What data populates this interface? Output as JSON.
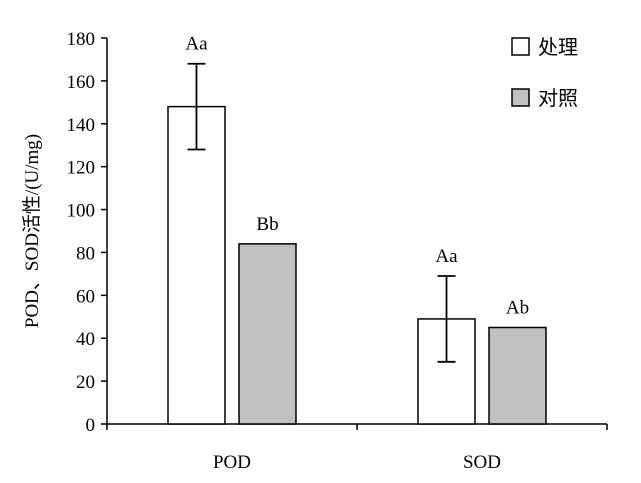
{
  "chart_data": {
    "type": "bar",
    "categories": [
      "POD",
      "SOD"
    ],
    "series": [
      {
        "name": "处理",
        "values": [
          148,
          49
        ],
        "error": [
          20,
          20
        ],
        "labels": [
          "Aa",
          "Aa"
        ],
        "color": "#ffffff"
      },
      {
        "name": "对照",
        "values": [
          84,
          45
        ],
        "error": [
          0,
          0
        ],
        "labels": [
          "Bb",
          "Ab"
        ],
        "color": "#c0c0c0"
      }
    ],
    "ylabel": "POD、SOD活性/(U/mg)",
    "xlabel": "",
    "ylim": [
      0,
      180
    ],
    "yticks": [
      0,
      20,
      40,
      60,
      80,
      100,
      120,
      140,
      160,
      180
    ],
    "grid": false,
    "legend_position": "top-right"
  }
}
